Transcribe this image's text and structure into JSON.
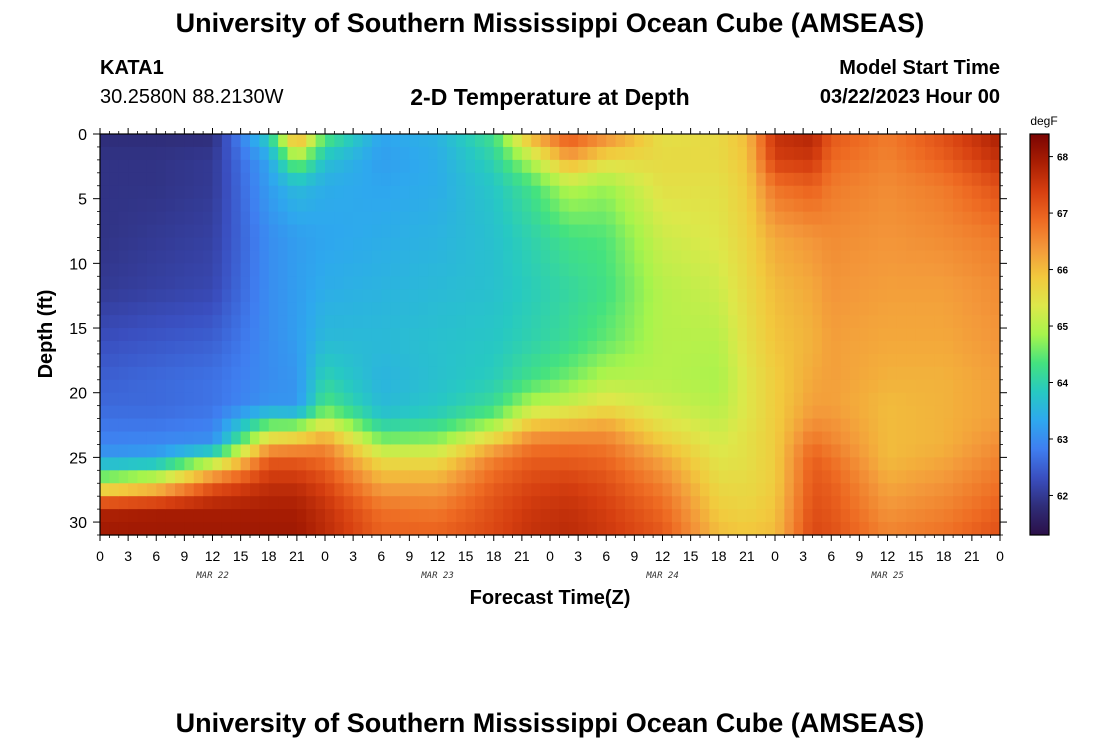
{
  "header": {
    "title": "University of Southern Mississippi Ocean Cube (AMSEAS)",
    "station_id": "KATA1",
    "station_coords": "30.2580N  88.2130W",
    "plot_title": "2-D Temperature at Depth",
    "model_start_label": "Model Start Time",
    "model_start_value": "03/22/2023 Hour 00"
  },
  "footer": {
    "title": "University of Southern Mississippi Ocean Cube (AMSEAS)"
  },
  "chart_data": {
    "type": "heatmap",
    "title": "2-D Temperature at Depth",
    "xlabel": "Forecast Time(Z)",
    "ylabel": "Depth (ft)",
    "x_hours_range": [
      0,
      96
    ],
    "x_tick_labels": [
      "0",
      "3",
      "6",
      "9",
      "12",
      "15",
      "18",
      "21",
      "0",
      "3",
      "6",
      "9",
      "12",
      "15",
      "18",
      "21",
      "0",
      "3",
      "6",
      "9",
      "12",
      "15",
      "18",
      "21",
      "0",
      "3",
      "6",
      "9",
      "12",
      "15",
      "18",
      "21",
      "0"
    ],
    "date_labels": [
      {
        "hour": 12,
        "label": "MAR 22"
      },
      {
        "hour": 36,
        "label": "MAR 23"
      },
      {
        "hour": 60,
        "label": "MAR 24"
      },
      {
        "hour": 84,
        "label": "MAR 25"
      }
    ],
    "ylim": [
      0,
      31
    ],
    "y_ticks": [
      0,
      5,
      10,
      15,
      20,
      25,
      30
    ],
    "colorbar": {
      "unit": "degF",
      "range": [
        61.3,
        68.4
      ],
      "ticks": [
        62,
        63,
        64,
        65,
        66,
        67,
        68
      ],
      "colors": [
        "#2b0f48",
        "#2f2d78",
        "#3a4fc0",
        "#3f7ef0",
        "#2ea8ee",
        "#27c9c2",
        "#44e27f",
        "#a6f44c",
        "#dde84a",
        "#f2c93d",
        "#f3983a",
        "#ee6a22",
        "#d63f10",
        "#a91e03",
        "#7a0403"
      ]
    },
    "hours": [
      0,
      6,
      12,
      18,
      21,
      24,
      30,
      36,
      42,
      46,
      50,
      54,
      60,
      66,
      69,
      72,
      76,
      78,
      84,
      90,
      96
    ],
    "depths": [
      0,
      2,
      4,
      8,
      12,
      16,
      19,
      21,
      22,
      23,
      24,
      25,
      27,
      29,
      31
    ],
    "temperature": [
      [
        61.8,
        61.9,
        61.9,
        61.9,
        62.0,
        62.3,
        62.5,
        62.6,
        62.7,
        62.8,
        62.9,
        63.2,
        65.0,
        67.8,
        68.0
      ],
      [
        61.8,
        61.9,
        61.9,
        62.0,
        62.1,
        62.4,
        62.6,
        62.6,
        62.7,
        62.8,
        63.0,
        63.3,
        65.5,
        67.9,
        68.0
      ],
      [
        61.8,
        62.0,
        62.0,
        62.1,
        62.2,
        62.5,
        62.7,
        62.7,
        62.8,
        62.9,
        63.1,
        64.5,
        67.0,
        67.9,
        68.0
      ],
      [
        64.0,
        63.3,
        63.2,
        63.0,
        63.0,
        63.0,
        63.0,
        63.1,
        64.1,
        65.0,
        66.0,
        67.0,
        67.6,
        67.9,
        68.0
      ],
      [
        66.5,
        64.8,
        63.6,
        63.2,
        63.2,
        63.2,
        63.1,
        63.1,
        64.0,
        65.2,
        66.2,
        67.0,
        67.6,
        67.9,
        68.0
      ],
      [
        64.5,
        63.7,
        63.4,
        63.3,
        63.4,
        63.6,
        64.0,
        64.4,
        65.0,
        65.8,
        66.5,
        66.8,
        67.3,
        67.6,
        67.7
      ],
      [
        63.3,
        63.2,
        63.3,
        63.4,
        63.5,
        63.6,
        63.5,
        63.6,
        63.8,
        64.3,
        64.8,
        65.5,
        66.2,
        66.8,
        67.0
      ],
      [
        63.5,
        63.4,
        63.4,
        63.5,
        63.6,
        63.7,
        63.7,
        63.8,
        64.0,
        64.4,
        64.9,
        65.5,
        66.2,
        66.7,
        67.0
      ],
      [
        64.3,
        64.0,
        63.8,
        63.7,
        63.7,
        63.8,
        63.9,
        64.2,
        64.6,
        65.2,
        66.0,
        66.6,
        67.0,
        67.2,
        67.3
      ],
      [
        66.2,
        65.0,
        64.3,
        64.0,
        63.9,
        64.0,
        64.3,
        65.0,
        65.6,
        66.2,
        66.7,
        67.0,
        67.3,
        67.5,
        67.6
      ],
      [
        67.2,
        66.2,
        65.0,
        64.3,
        64.1,
        64.2,
        64.6,
        65.2,
        65.8,
        66.3,
        66.8,
        67.0,
        67.4,
        67.6,
        67.7
      ],
      [
        66.6,
        65.6,
        64.8,
        64.4,
        64.3,
        64.5,
        65.0,
        65.5,
        66.0,
        66.4,
        66.7,
        66.9,
        67.2,
        67.4,
        67.5
      ],
      [
        65.5,
        65.6,
        65.5,
        65.2,
        65.0,
        65.0,
        65.0,
        65.2,
        65.4,
        65.6,
        65.9,
        66.2,
        66.6,
        66.9,
        67.1
      ],
      [
        65.6,
        65.6,
        65.5,
        65.4,
        65.2,
        65.0,
        64.9,
        65.0,
        65.1,
        65.2,
        65.3,
        65.4,
        65.6,
        65.8,
        66.0
      ],
      [
        66.0,
        65.9,
        65.8,
        65.7,
        65.6,
        65.5,
        65.4,
        65.4,
        65.4,
        65.5,
        65.5,
        65.5,
        65.6,
        65.7,
        65.9
      ],
      [
        67.6,
        67.4,
        66.8,
        66.2,
        66.0,
        65.9,
        65.8,
        65.8,
        65.8,
        65.8,
        65.8,
        65.8,
        65.8,
        65.9,
        66.0
      ],
      [
        67.8,
        67.5,
        67.0,
        66.4,
        66.2,
        66.1,
        66.2,
        66.3,
        66.4,
        66.6,
        66.8,
        67.0,
        67.1,
        67.2,
        67.3
      ],
      [
        67.1,
        66.9,
        66.7,
        66.5,
        66.4,
        66.3,
        66.3,
        66.3,
        66.4,
        66.5,
        66.6,
        66.8,
        67.0,
        67.1,
        67.2
      ],
      [
        66.7,
        66.6,
        66.5,
        66.4,
        66.3,
        66.2,
        66.1,
        66.0,
        66.0,
        66.0,
        66.0,
        66.0,
        66.2,
        66.4,
        66.6
      ],
      [
        67.2,
        67.0,
        66.7,
        66.5,
        66.3,
        66.2,
        66.1,
        66.1,
        66.1,
        66.1,
        66.1,
        66.2,
        66.4,
        66.6,
        66.8
      ],
      [
        67.9,
        67.6,
        67.2,
        66.7,
        66.5,
        66.4,
        66.3,
        66.3,
        66.3,
        66.4,
        66.5,
        66.6,
        66.8,
        67.0,
        67.2
      ]
    ]
  }
}
